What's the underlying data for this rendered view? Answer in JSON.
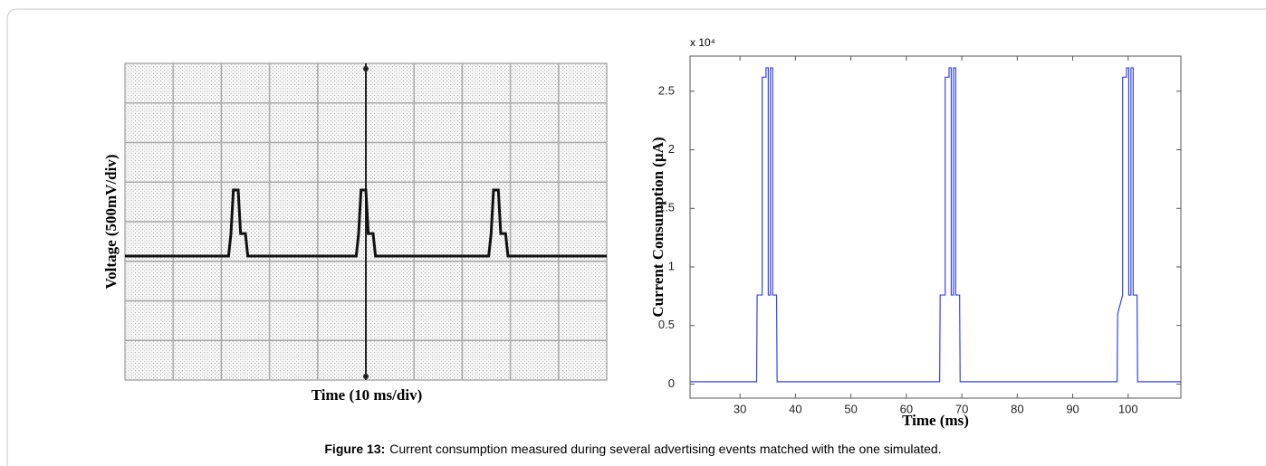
{
  "chart_data": [
    {
      "type": "line",
      "xlabel": "Time (10 ms/div)",
      "ylabel": "Voltage (500mV/div)",
      "xlim": [
        0,
        10
      ],
      "ylim": [
        -4,
        4
      ],
      "grid": true,
      "x": [
        0,
        2.15,
        2.2,
        2.25,
        2.35,
        2.4,
        2.5,
        2.55,
        4.8,
        4.85,
        4.9,
        5.0,
        5.05,
        5.15,
        5.2,
        7.55,
        7.6,
        7.65,
        7.75,
        7.8,
        7.9,
        7.95,
        10
      ],
      "series": [
        {
          "color": "#111111",
          "values": [
            -0.87,
            -0.87,
            -0.3,
            0.8,
            0.8,
            -0.3,
            -0.3,
            -0.87,
            -0.87,
            -0.3,
            0.8,
            0.8,
            -0.3,
            -0.3,
            -0.87,
            -0.87,
            -0.3,
            0.8,
            0.8,
            -0.3,
            -0.3,
            -0.87,
            -0.87
          ]
        }
      ]
    },
    {
      "type": "line",
      "xlabel": "Time (ms)",
      "ylabel": "Current Consumption (µA)",
      "annotation": "x 10⁴",
      "xlim": [
        21,
        109.5
      ],
      "ylim": [
        -0.12,
        2.8
      ],
      "xticks": [
        30,
        40,
        50,
        60,
        70,
        80,
        90,
        100
      ],
      "yticks": [
        0,
        0.5,
        1,
        1.5,
        2,
        2.5
      ],
      "x": [
        21,
        33,
        33.1,
        34,
        34,
        34.7,
        34.7,
        35.1,
        35.1,
        35.5,
        35.5,
        35.9,
        35.9,
        36.6,
        36.7,
        66,
        66.1,
        67,
        67,
        67.7,
        67.7,
        68.1,
        68.1,
        68.5,
        68.5,
        68.9,
        68.9,
        69.6,
        69.7,
        98,
        98.1,
        99,
        99,
        99.7,
        99.7,
        100.1,
        100.1,
        100.5,
        100.5,
        100.9,
        100.9,
        101.6,
        101.7,
        109.5
      ],
      "series": [
        {
          "color": "#3344ee",
          "values": [
            0.02,
            0.02,
            0.76,
            0.76,
            2.62,
            2.62,
            2.7,
            2.7,
            0.76,
            0.76,
            2.7,
            2.7,
            0.76,
            0.76,
            0.02,
            0.02,
            0.76,
            0.76,
            2.62,
            2.62,
            2.7,
            2.7,
            0.76,
            0.76,
            2.7,
            2.7,
            0.76,
            0.76,
            0.02,
            0.02,
            0.6,
            0.76,
            2.62,
            2.62,
            2.7,
            2.7,
            0.76,
            0.76,
            2.7,
            2.7,
            0.76,
            0.76,
            0.02,
            0.02
          ]
        }
      ]
    }
  ],
  "caption": {
    "label": "Figure 13:",
    "text": "Current consumption measured during several advertising events matched with the one simulated."
  }
}
